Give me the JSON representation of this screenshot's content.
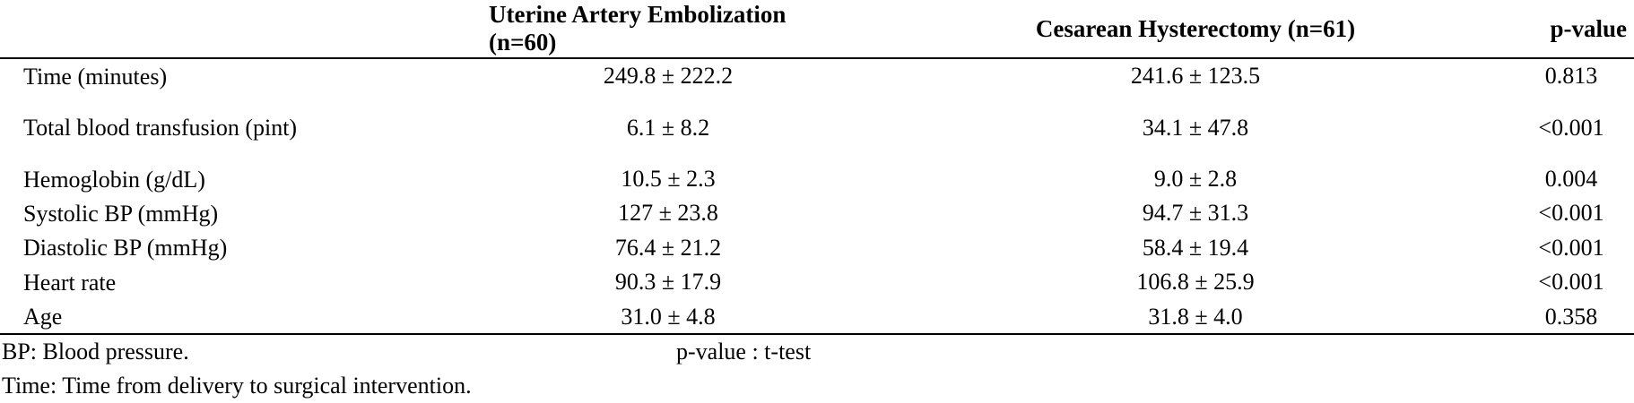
{
  "table": {
    "columns": [
      "Uterine Artery Embolization (n=60)",
      "Cesarean Hysterectomy (n=61)",
      "p-value"
    ],
    "rows": [
      {
        "label": "Time (minutes)",
        "cells": [
          "249.8 ± 222.2",
          "241.6 ± 123.5",
          "0.813"
        ]
      },
      {
        "label": "Total blood transfusion (pint)",
        "cells": [
          "6.1 ± 8.2",
          "34.1 ± 47.8",
          "<0.001"
        ]
      },
      {
        "label": "Hemoglobin (g/dL)",
        "cells": [
          "10.5 ± 2.3",
          "9.0 ± 2.8",
          "0.004"
        ]
      },
      {
        "label": "Systolic BP (mmHg)",
        "cells": [
          "127 ± 23.8",
          "94.7 ± 31.3",
          "<0.001"
        ]
      },
      {
        "label": "Diastolic BP (mmHg)",
        "cells": [
          "76.4 ± 21.2",
          "58.4 ± 19.4",
          "<0.001"
        ]
      },
      {
        "label": "Heart rate",
        "cells": [
          "90.3 ± 17.9",
          "106.8 ± 25.9",
          "<0.001"
        ]
      },
      {
        "label": "Age",
        "cells": [
          "31.0 ± 4.8",
          "31.8 ± 4.0",
          "0.358"
        ]
      }
    ]
  },
  "footnotes": [
    "BP: Blood pressure.",
    "p-value : t-test",
    "Time: Time from delivery to surgical intervention."
  ]
}
